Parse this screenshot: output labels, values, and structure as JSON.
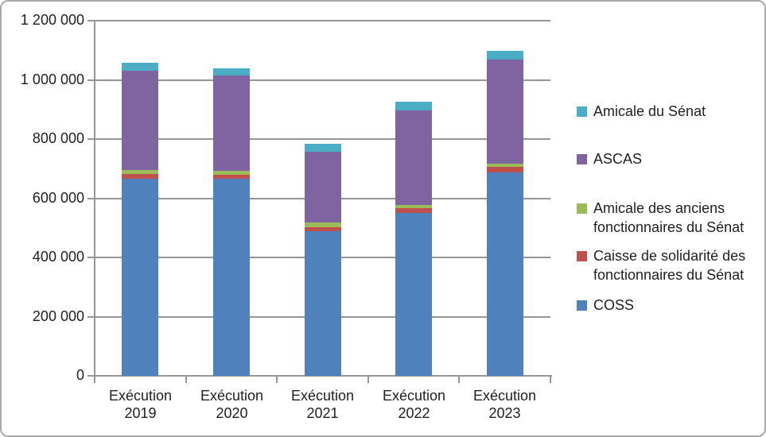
{
  "chart_data": {
    "type": "bar",
    "stacked": true,
    "title": "",
    "categories": [
      {
        "key": "2019",
        "lines": [
          "Exécution",
          "2019"
        ]
      },
      {
        "key": "2020",
        "lines": [
          "Exécution",
          "2020"
        ]
      },
      {
        "key": "2021",
        "lines": [
          "Exécution",
          "2021"
        ]
      },
      {
        "key": "2022",
        "lines": [
          "Exécution",
          "2022"
        ]
      },
      {
        "key": "2023",
        "lines": [
          "Exécution",
          "2023"
        ]
      }
    ],
    "series_order": "bottom-to-top",
    "series": [
      {
        "key": "coss",
        "name": "COSS",
        "color": "#4F81BD",
        "values": [
          665000,
          665000,
          488000,
          550000,
          687000
        ]
      },
      {
        "key": "caisse-solidarite",
        "name": "Caisse de solidarité des fonctionnaires du Sénat",
        "color": "#C0504D",
        "values": [
          16000,
          14000,
          15000,
          16000,
          18000
        ]
      },
      {
        "key": "amicale-anciens",
        "name": "Amicale des anciens fonctionnaires du Sénat",
        "color": "#9BBB59",
        "values": [
          13000,
          13000,
          14000,
          12000,
          12000
        ]
      },
      {
        "key": "ascas",
        "name": "ASCAS",
        "color": "#8064A2",
        "values": [
          337000,
          323000,
          240000,
          319000,
          351000
        ]
      },
      {
        "key": "amicale-senat",
        "name": "Amicale du Sénat",
        "color": "#4BACC6",
        "values": [
          27000,
          25000,
          26000,
          28000,
          31000
        ]
      }
    ],
    "ylim": [
      0,
      1200000
    ],
    "ytick_step": 200000,
    "y_axis": {
      "tick_labels": [
        "0",
        "200 000",
        "400 000",
        "600 000",
        "800 000",
        "1 000 000",
        "1 200 000"
      ]
    },
    "grid": true,
    "legend": {
      "position": "right",
      "items": [
        {
          "key": "amicale-senat",
          "color": "#4BACC6",
          "lines": [
            "Amicale du Sénat"
          ]
        },
        {
          "key": "ascas",
          "color": "#8064A2",
          "lines": [
            "ASCAS"
          ]
        },
        {
          "key": "amicale-anciens",
          "color": "#9BBB59",
          "lines": [
            "Amicale des anciens",
            "fonctionnaires du Sénat"
          ]
        },
        {
          "key": "caisse-solidarite",
          "color": "#C0504D",
          "lines": [
            "Caisse de solidarité des",
            "fonctionnaires du Sénat"
          ]
        },
        {
          "key": "coss",
          "color": "#4F81BD",
          "lines": [
            "COSS"
          ]
        }
      ]
    }
  }
}
